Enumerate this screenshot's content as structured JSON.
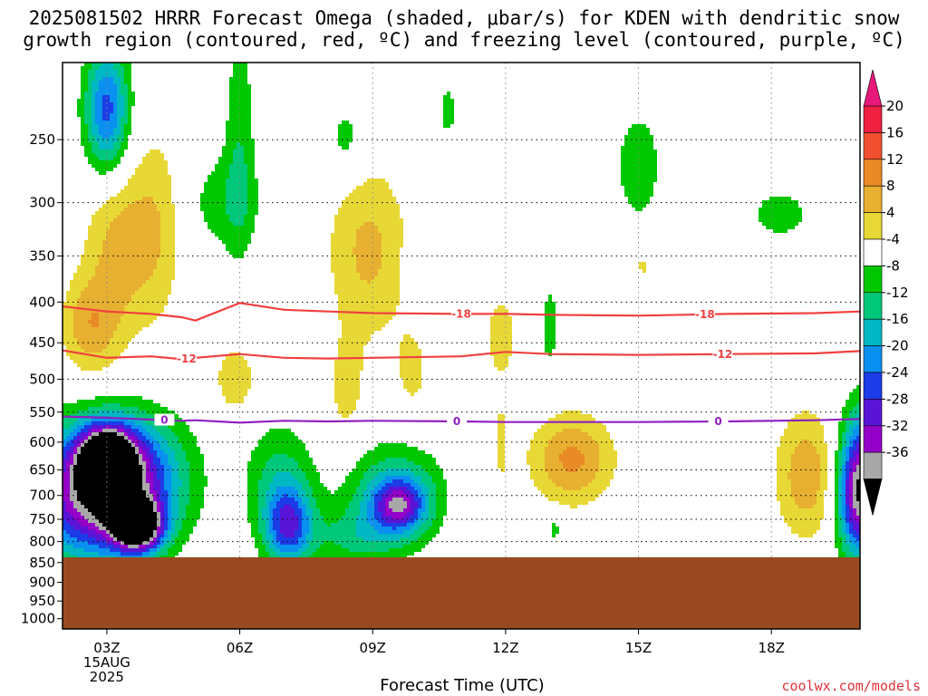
{
  "title_line1": "2025081502 HRRR Forecast Omega (shaded, μbar/s) for KDEN with dendritic snow",
  "title_line2": "growth region (contoured, red, ºC) and freezing level (contoured, purple, ºC)",
  "credit": "coolwx.com/models",
  "chart_data": {
    "type": "heatmap",
    "title": "2025081502 HRRR Forecast Omega (shaded, μbar/s) for KDEN with dendritic snow growth region (contoured, red, ºC) and freezing level (contoured, purple, ºC)",
    "xlabel": "Forecast Time (UTC)",
    "ylabel": "",
    "x_ticks": [
      "03Z",
      "06Z",
      "09Z",
      "12Z",
      "15Z",
      "18Z"
    ],
    "x_tick_date": [
      "15AUG",
      "2025"
    ],
    "x_range_hours": [
      2,
      20
    ],
    "y_ticks": [
      250,
      300,
      350,
      400,
      450,
      500,
      550,
      600,
      650,
      700,
      750,
      800,
      850,
      900,
      950,
      1000
    ],
    "y_range_hPa": [
      200,
      1030
    ],
    "y_scale": "log-pressure (inverted)",
    "surface_pressure_hPa": 837,
    "colorbar": {
      "levels": [
        -36,
        -32,
        -28,
        -24,
        -20,
        -16,
        -12,
        -8,
        -4,
        4,
        8,
        12,
        16,
        20
      ],
      "labels": [
        "20",
        "16",
        "12",
        "8",
        "4",
        "-4",
        "-8",
        "-12",
        "-16",
        "-20",
        "-24",
        "-28",
        "-32",
        "-36"
      ],
      "colors": [
        "#000000",
        "#a8a8a8",
        "#9500c8",
        "#5a14d8",
        "#1b3ce6",
        "#0a90f0",
        "#00b7c4",
        "#00c87a",
        "#00c800",
        "#ffffff",
        "#e8d836",
        "#e8b030",
        "#ea8a26",
        "#f05030",
        "#f02040",
        "#e8187a"
      ]
    },
    "contours": [
      {
        "name": "-18",
        "color": "#f04040",
        "hPa": [
          405,
          411,
          414,
          418,
          422,
          401,
          409,
          411,
          413,
          414,
          414,
          415,
          416,
          414,
          413,
          411
        ]
      },
      {
        "name": "-12",
        "color": "#f04040",
        "hPa": [
          460,
          470,
          468,
          472,
          470,
          465,
          470,
          471,
          470,
          468,
          462,
          465,
          466,
          465,
          464,
          461
        ]
      },
      {
        "name": "0",
        "color": "#9020c0",
        "hPa": [
          557,
          559,
          562,
          564,
          563,
          567,
          564,
          565,
          564,
          565,
          566,
          566,
          566,
          565,
          563,
          561
        ]
      }
    ],
    "contour_hours": [
      2,
      3,
      4,
      4.7,
      5,
      6,
      7,
      8,
      9,
      11,
      12,
      13,
      15,
      17,
      19,
      20
    ]
  }
}
